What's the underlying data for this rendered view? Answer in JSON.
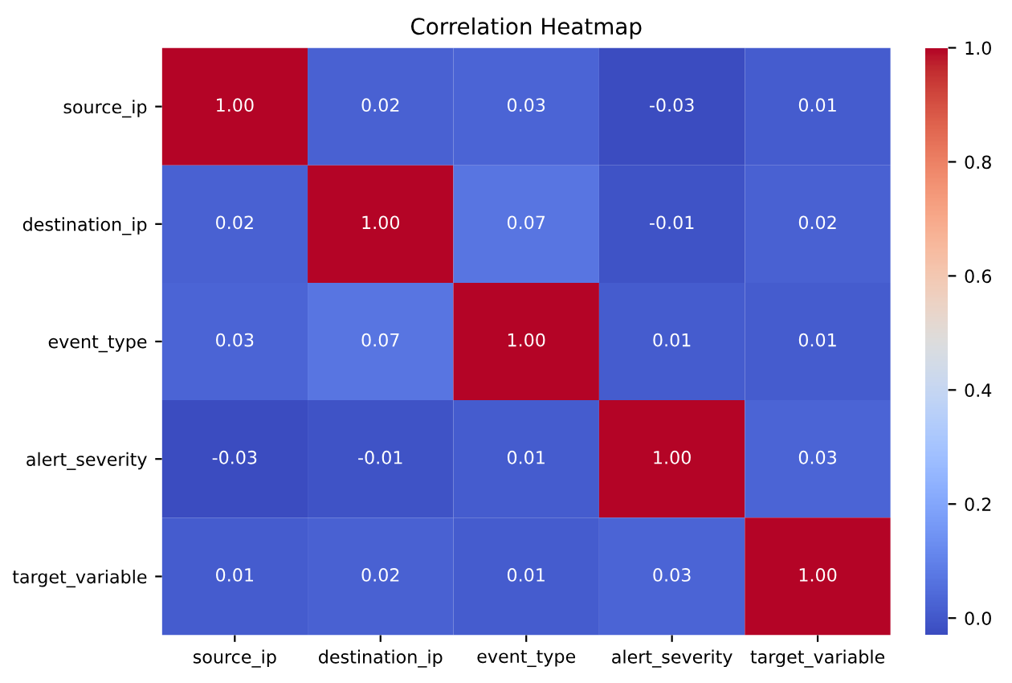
{
  "chart_data": {
    "type": "heatmap",
    "title": "Correlation Heatmap",
    "categories": [
      "source_ip",
      "destination_ip",
      "event_type",
      "alert_severity",
      "target_variable"
    ],
    "y_categories": [
      "source_ip",
      "destination_ip",
      "event_type",
      "alert_severity",
      "target_variable"
    ],
    "cells": [
      [
        1.0,
        0.02,
        0.03,
        -0.03,
        0.01
      ],
      [
        0.02,
        1.0,
        0.07,
        -0.01,
        0.02
      ],
      [
        0.03,
        0.07,
        1.0,
        0.01,
        0.01
      ],
      [
        -0.03,
        -0.01,
        0.01,
        1.0,
        0.03
      ],
      [
        0.01,
        0.02,
        0.01,
        0.03,
        1.0
      ]
    ],
    "cell_labels": [
      [
        "1.00",
        "0.02",
        "0.03",
        "-0.03",
        "0.01"
      ],
      [
        "0.02",
        "1.00",
        "0.07",
        "-0.01",
        "0.02"
      ],
      [
        "0.03",
        "0.07",
        "1.00",
        "0.01",
        "0.01"
      ],
      [
        "-0.03",
        "-0.01",
        "0.01",
        "1.00",
        "0.03"
      ],
      [
        "0.01",
        "0.02",
        "0.01",
        "0.03",
        "1.00"
      ]
    ],
    "clim": [
      -0.03,
      1.0
    ],
    "cticks": [
      {
        "value": 0.0,
        "label": "0.0"
      },
      {
        "value": 0.2,
        "label": "0.2"
      },
      {
        "value": 0.4,
        "label": "0.4"
      },
      {
        "value": 0.6,
        "label": "0.6"
      },
      {
        "value": 0.8,
        "label": "0.8"
      },
      {
        "value": 1.0,
        "label": "1.0"
      }
    ]
  }
}
